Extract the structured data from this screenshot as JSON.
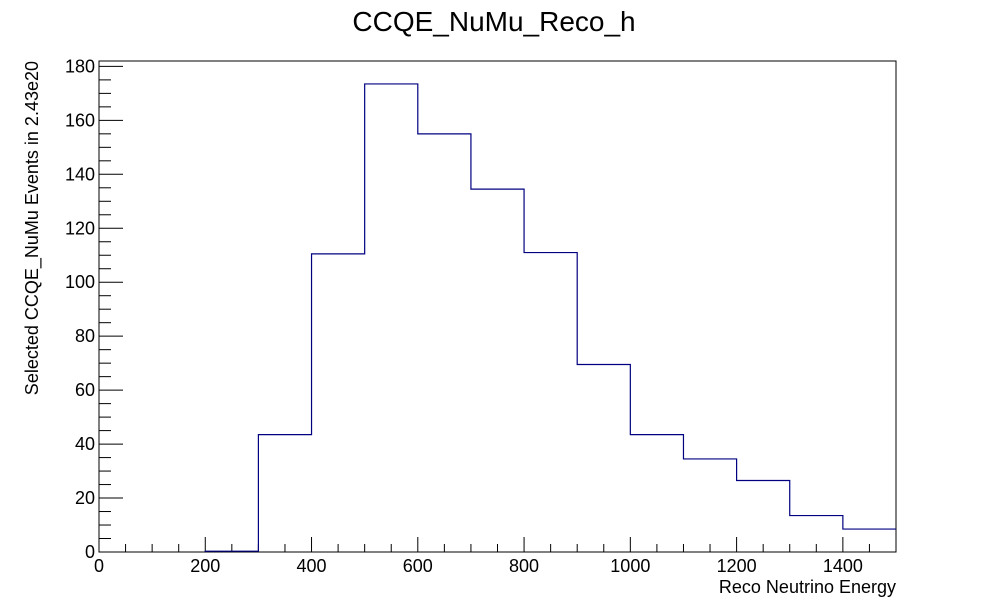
{
  "chart_data": {
    "type": "bar",
    "style": "step-histogram",
    "title": "CCQE_NuMu_Reco_h",
    "xlabel": "Reco Neutrino Energy",
    "ylabel": "Selected CCQE_NuMu Events in 2.43e20",
    "xlim": [
      0,
      1500
    ],
    "ylim": [
      0,
      182
    ],
    "x_ticks": [
      0,
      200,
      400,
      600,
      800,
      1000,
      1200,
      1400
    ],
    "y_ticks": [
      0,
      20,
      40,
      60,
      80,
      100,
      120,
      140,
      160,
      180
    ],
    "bin_edges": [
      0,
      100,
      200,
      300,
      400,
      500,
      600,
      700,
      800,
      900,
      1000,
      1100,
      1200,
      1300,
      1400,
      1500
    ],
    "values": [
      0,
      0,
      0.3,
      43.5,
      110.5,
      173.5,
      155,
      134.5,
      111,
      69.5,
      43.5,
      34.5,
      26.5,
      13.5,
      8.5
    ],
    "grid": false,
    "legend": "none",
    "line_color": "#000080",
    "frame_color": "#000000"
  }
}
